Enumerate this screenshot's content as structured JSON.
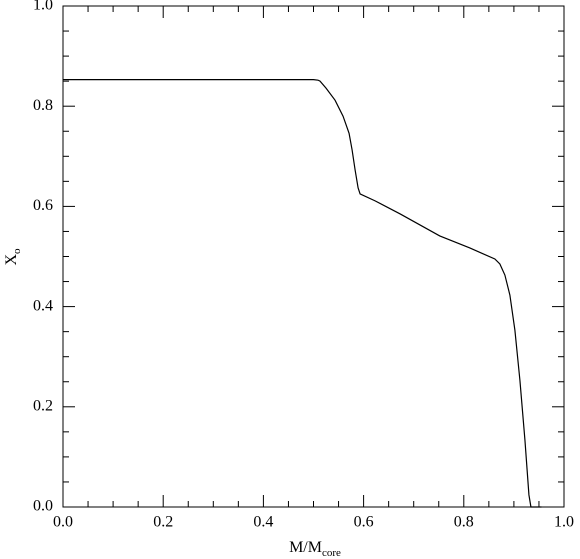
{
  "chart_data": {
    "type": "line",
    "xlabel": {
      "text": "M/M",
      "subscript": "core"
    },
    "ylabel": {
      "text": "X",
      "subscript": "o"
    },
    "xlim": [
      0,
      1
    ],
    "ylim": [
      0,
      1
    ],
    "xticks": [
      {
        "value": 0,
        "label": "0.0"
      },
      0.2,
      0.4,
      0.6,
      0.8,
      {
        "value": 1,
        "label": "1.0"
      }
    ],
    "yticks": [
      {
        "value": 0,
        "label": "0.0"
      },
      0.2,
      0.4,
      0.6,
      0.8,
      {
        "value": 1,
        "label": "1.0"
      }
    ],
    "xminor": [
      0.05,
      0.1,
      0.15,
      0.25,
      0.3,
      0.35,
      0.45,
      0.5,
      0.55,
      0.65,
      0.7,
      0.75,
      0.85,
      0.9,
      0.95
    ],
    "yminor": [
      0.05,
      0.1,
      0.15,
      0.25,
      0.3,
      0.35,
      0.45,
      0.5,
      0.55,
      0.65,
      0.7,
      0.75,
      0.85,
      0.9,
      0.95
    ],
    "grid": false,
    "series": [
      {
        "color": "#000000",
        "x": [
          0,
          0.5,
          0.509,
          0.513,
          0.525,
          0.543,
          0.559,
          0.571,
          0.577,
          0.583,
          0.589,
          0.593,
          0.623,
          0.673,
          0.752,
          0.812,
          0.862,
          0.872,
          0.882,
          0.892,
          0.902,
          0.912,
          0.922,
          0.93,
          0.934,
          0.955
        ],
        "values": [
          0.853,
          0.853,
          0.852,
          0.85,
          0.836,
          0.812,
          0.78,
          0.746,
          0.713,
          0.673,
          0.637,
          0.625,
          0.611,
          0.585,
          0.541,
          0.517,
          0.495,
          0.485,
          0.463,
          0.423,
          0.353,
          0.253,
          0.134,
          0.024,
          0,
          0
        ]
      }
    ]
  }
}
